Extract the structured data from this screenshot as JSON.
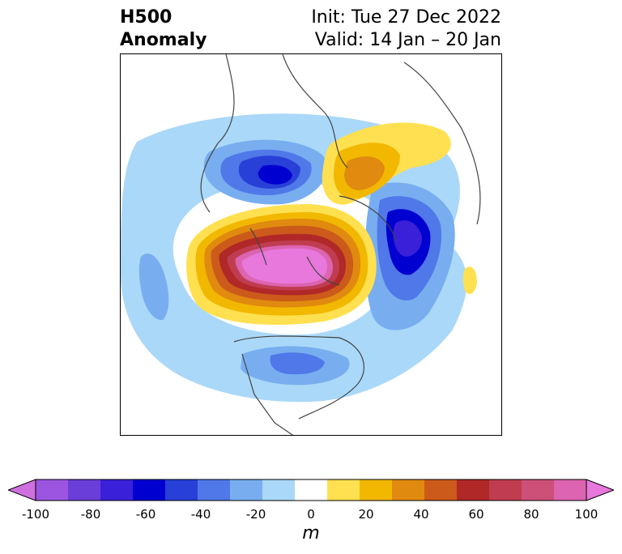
{
  "title": {
    "left_line1": "H500",
    "left_line2": "Anomaly",
    "right_line1": "Init: Tue 27 Dec 2022",
    "right_line2": "Valid: 14 Jan – 20 Jan"
  },
  "colorbar": {
    "unit": "m",
    "ticks": [
      "-100",
      "-80",
      "-60",
      "-40",
      "-20",
      "0",
      "20",
      "40",
      "60",
      "80",
      "100"
    ],
    "colors": [
      "#d070e0",
      "#9b55e0",
      "#6a3ed8",
      "#3a20d8",
      "#0000d0",
      "#2840d8",
      "#5078e8",
      "#78aef0",
      "#aad8f8",
      "#ffffff",
      "#ffe050",
      "#f2b800",
      "#e08a10",
      "#cc5a1a",
      "#b02828",
      "#c03c50",
      "#cc5078",
      "#dc64b0",
      "#e878dc"
    ],
    "extend": "both"
  },
  "map": {
    "projection": "polar-stereographic",
    "anomaly_features": [
      {
        "type": "positive",
        "center": "Arctic / Canada",
        "peak": "100"
      },
      {
        "type": "positive",
        "center": "Northern Europe",
        "peak": "60"
      },
      {
        "type": "negative",
        "center": "Bering / Eastern Siberia",
        "peak": "-60"
      },
      {
        "type": "negative",
        "center": "North Atlantic / Central Asia",
        "peak": "-60"
      },
      {
        "type": "negative",
        "center": "United States",
        "peak": "-40"
      }
    ]
  }
}
